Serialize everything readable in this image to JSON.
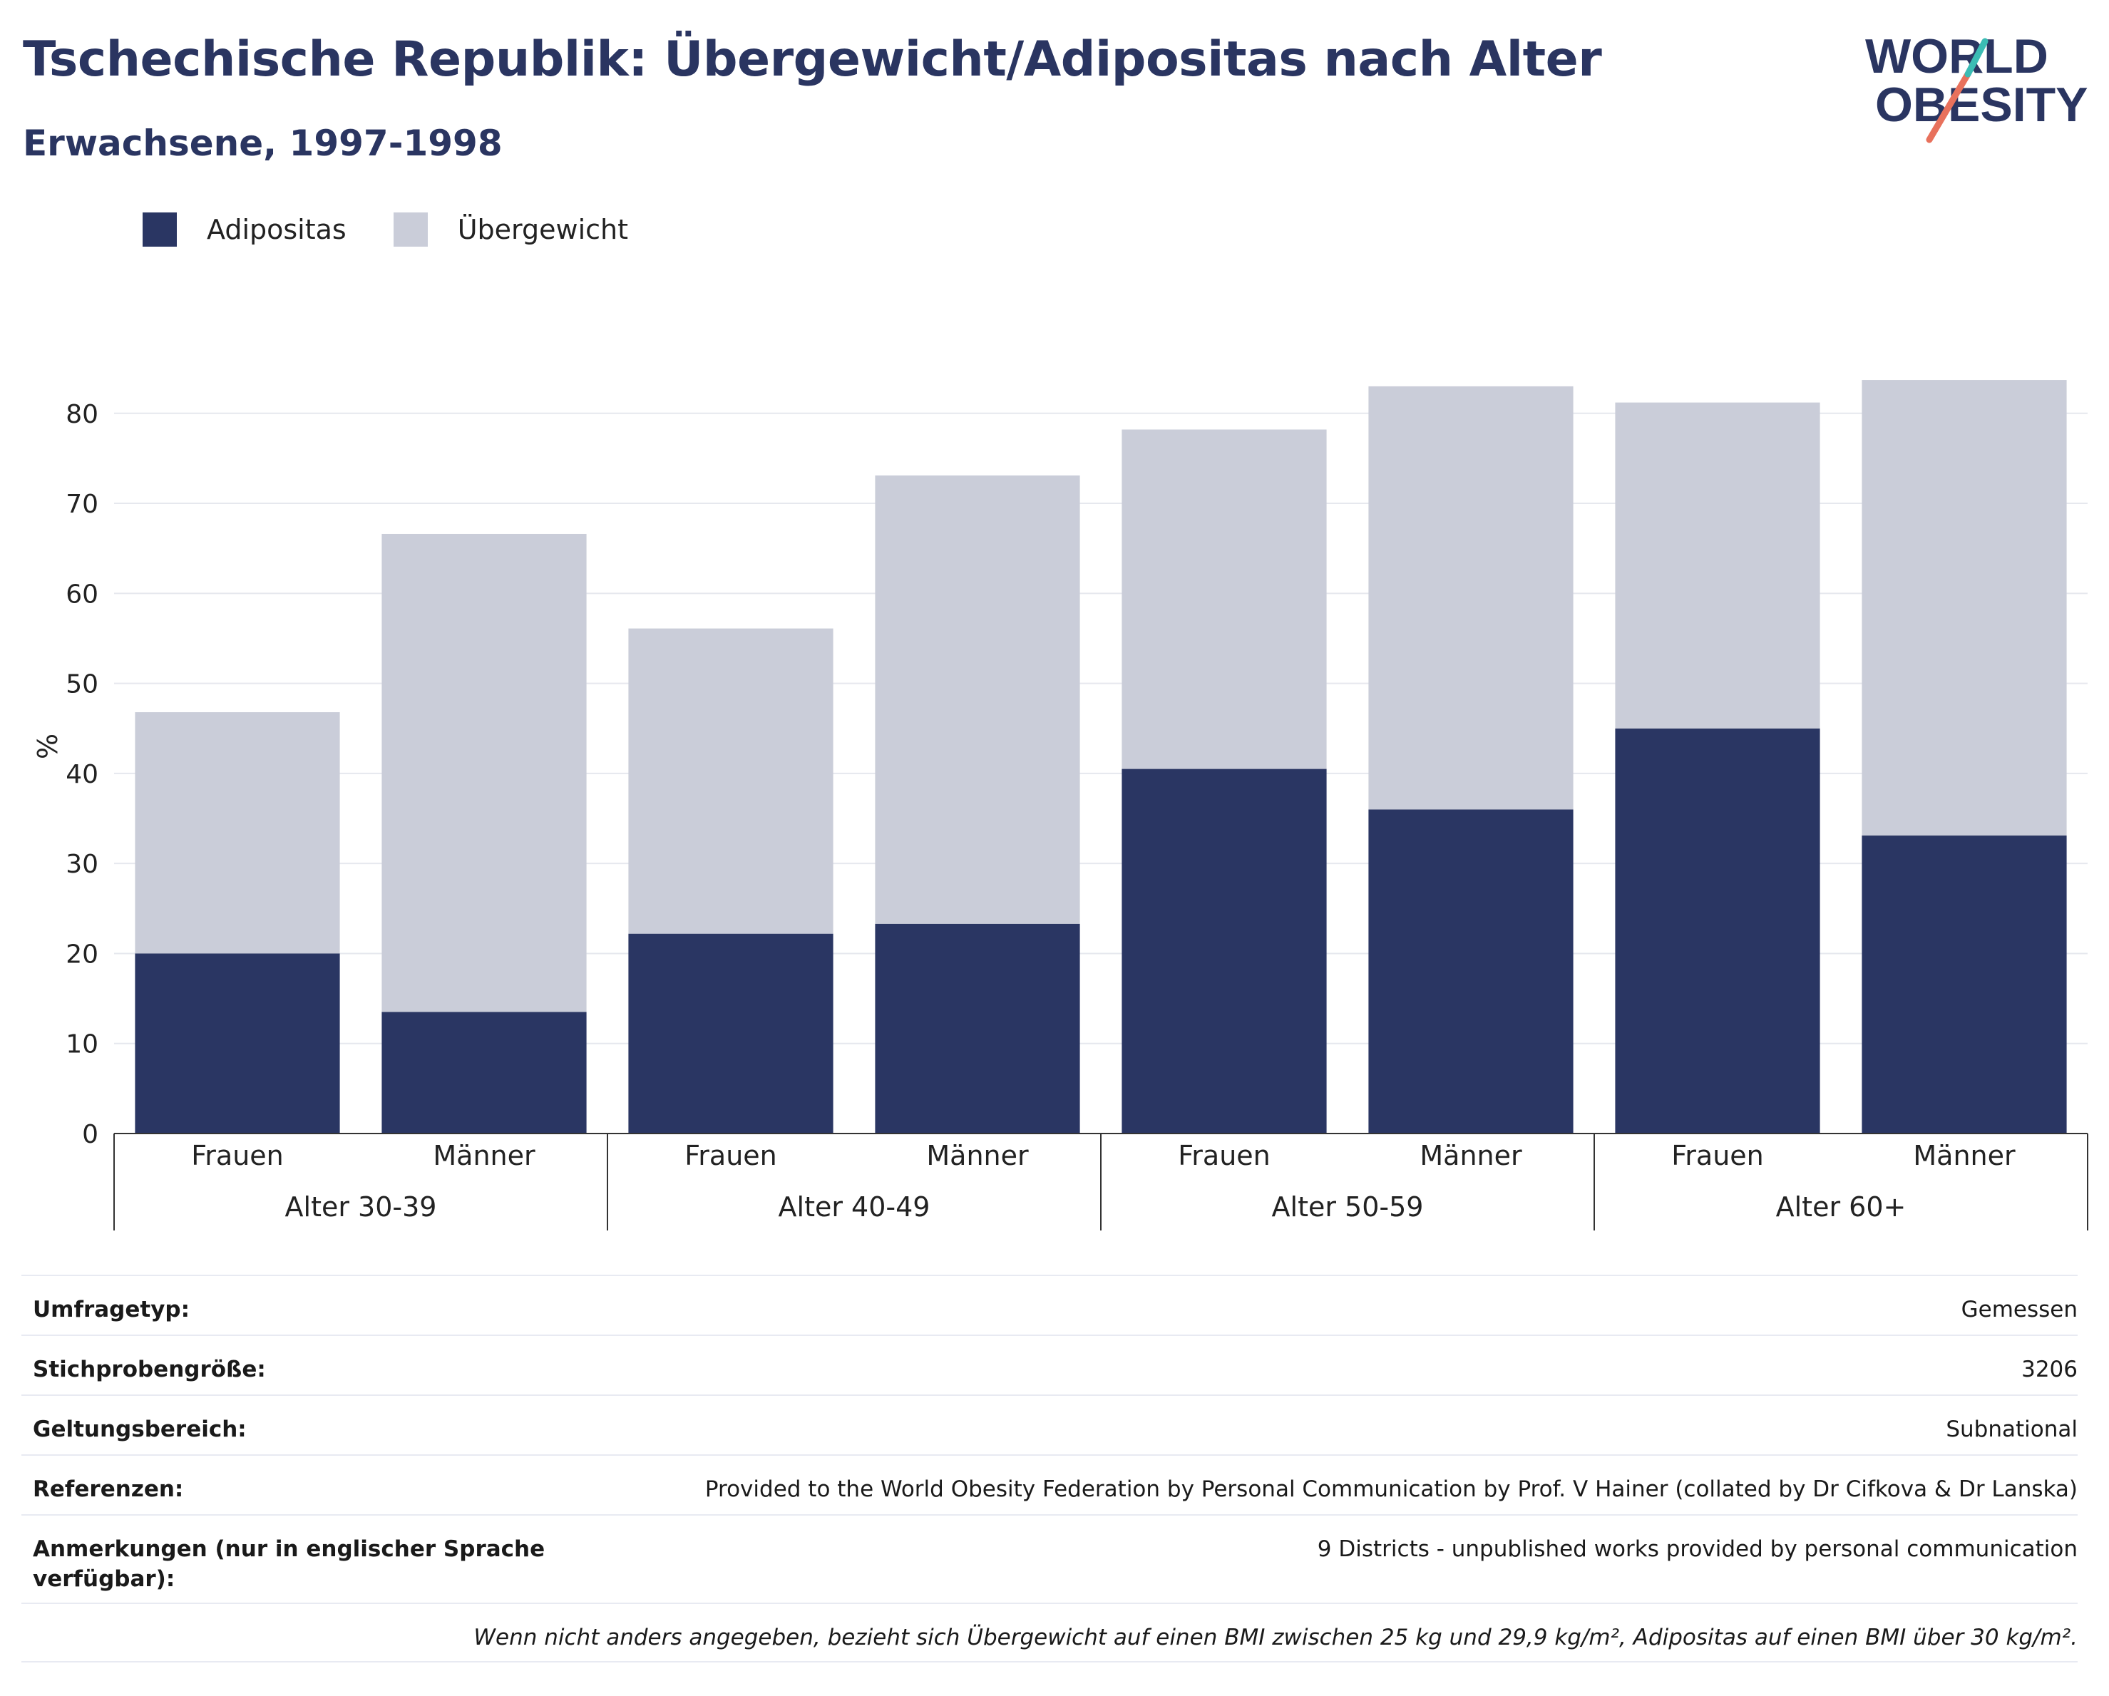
{
  "header": {
    "title": "Tschechische Republik: Übergewicht/Adipositas nach Alter",
    "subtitle": "Erwachsene, 1997-1998"
  },
  "logo": {
    "line1": "WORLD",
    "line2": "OBESITY"
  },
  "colors": {
    "adipositas": "#2a3663",
    "uebergewicht": "#cacdd9",
    "title": "#2a3561",
    "grid": "#e6e8ee",
    "axis": "#333333"
  },
  "chart_data": {
    "type": "bar",
    "stacked": true,
    "ylabel": "%",
    "ylim": [
      0,
      86
    ],
    "yticks": [
      0,
      10,
      20,
      30,
      40,
      50,
      60,
      70,
      80
    ],
    "grid": true,
    "legend_position": "top-left",
    "groups": [
      "Alter 30-39",
      "Alter 40-49",
      "Alter 50-59",
      "Alter 60+"
    ],
    "categories": [
      "Frauen",
      "Männer",
      "Frauen",
      "Männer",
      "Frauen",
      "Männer",
      "Frauen",
      "Männer"
    ],
    "series": [
      {
        "name": "Adipositas",
        "values": [
          20.0,
          13.5,
          22.2,
          23.3,
          40.5,
          36.0,
          45.0,
          33.1
        ]
      },
      {
        "name": "Übergewicht",
        "values": [
          26.8,
          53.1,
          33.9,
          49.8,
          37.7,
          47.0,
          36.2,
          50.6
        ]
      }
    ]
  },
  "meta": {
    "rows": [
      {
        "label": "Umfragetyp:",
        "value": "Gemessen"
      },
      {
        "label": "Stichprobengröße:",
        "value": "3206"
      },
      {
        "label": "Geltungsbereich:",
        "value": "Subnational"
      },
      {
        "label": "Referenzen:",
        "value": "Provided to the World Obesity Federation by Personal Communication by Prof. V Hainer (collated by Dr Cifkova & Dr Lanska)"
      },
      {
        "label": "Anmerkungen (nur in englischer Sprache verfügbar):",
        "value": "9 Districts - unpublished works provided by personal communication"
      }
    ],
    "note": "Wenn nicht anders angegeben, bezieht sich Übergewicht auf einen BMI zwischen 25 kg und 29,9 kg/m², Adipositas auf einen BMI über 30 kg/m²."
  }
}
